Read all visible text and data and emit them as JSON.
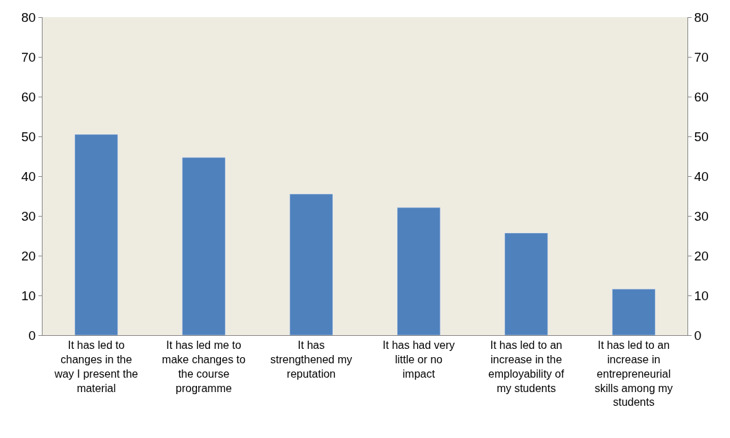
{
  "chart_data": {
    "type": "bar",
    "categories": [
      "It has led to changes in the way I present the material",
      "It has led me to make changes to the course programme",
      "It has strengthened my reputation",
      "It has had very little or no impact",
      "It has led to an increase in the employability of my students",
      "It has led to an increase in entrepreneurial skills among my students"
    ],
    "series": [
      {
        "color": "#4f81bd",
        "values": [
          50.5,
          44.7,
          35.5,
          32.1,
          25.7,
          11.6
        ]
      }
    ],
    "ylim": [
      0,
      80
    ],
    "yticks": [
      0,
      10,
      20,
      30,
      40,
      50,
      60,
      70,
      80
    ],
    "y2lim": [
      0,
      80
    ],
    "y2ticks": [
      0,
      10,
      20,
      30,
      40,
      50,
      60,
      70,
      80
    ]
  }
}
